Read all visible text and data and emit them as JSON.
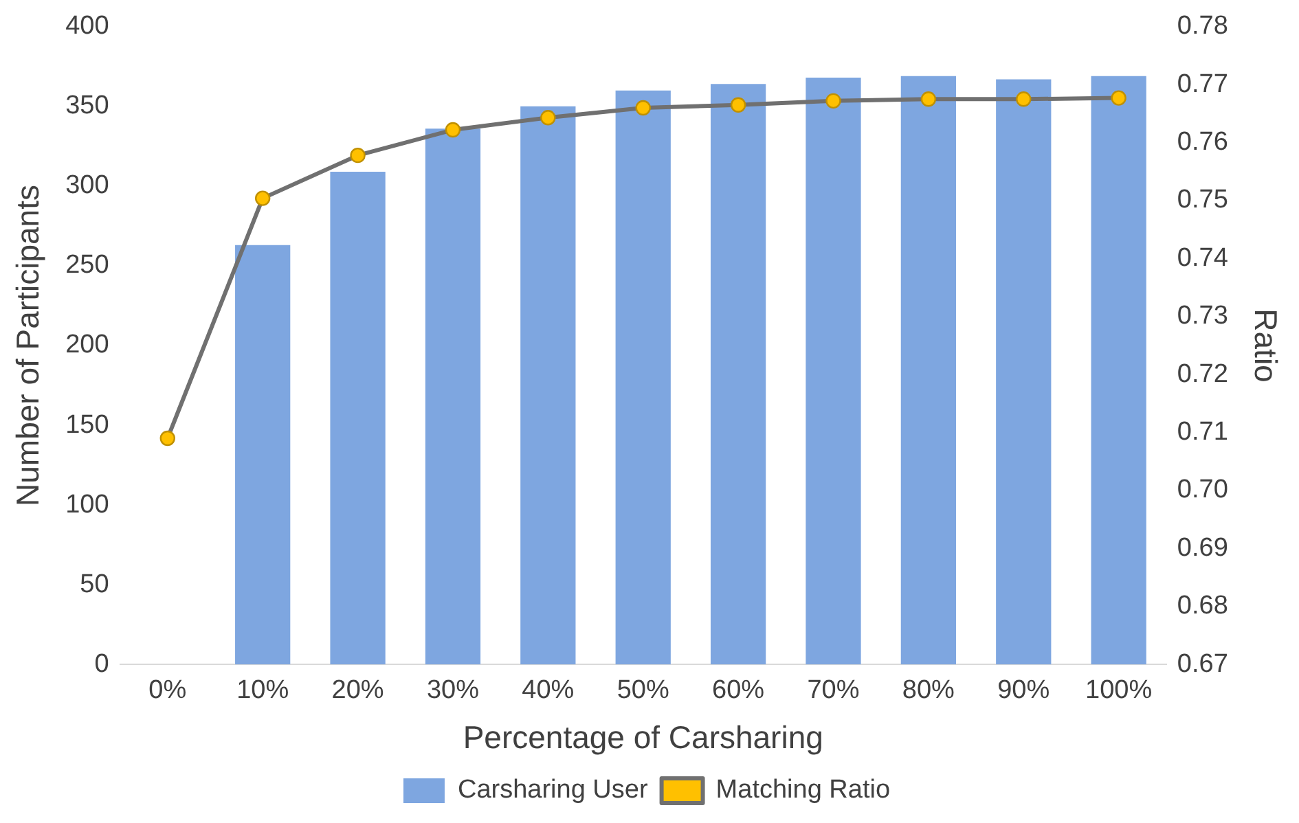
{
  "chart_data": {
    "type": "bar",
    "categories": [
      "0%",
      "10%",
      "20%",
      "30%",
      "40%",
      "50%",
      "60%",
      "70%",
      "80%",
      "90%",
      "100%"
    ],
    "xlabel": "Percentage of Carsharing",
    "ylabel": "Number of Participants",
    "y2label": "Ratio",
    "series": [
      {
        "name": "Carsharing User",
        "color": "#7ea6e0",
        "values": [
          0,
          263,
          309,
          336,
          350,
          360,
          364,
          368,
          369,
          367,
          369
        ]
      },
      {
        "name": "Matching Ratio",
        "type": "line",
        "axis": "y2",
        "color": "#707070",
        "marker": "circle",
        "values": [
          0.709,
          0.7504,
          0.7578,
          0.7622,
          0.7643,
          0.766,
          0.7665,
          0.7672,
          0.7675,
          0.7675,
          0.7677
        ]
      }
    ],
    "ylim": [
      0,
      400
    ],
    "yticks": [
      0,
      50,
      100,
      150,
      200,
      250,
      300,
      350,
      400
    ],
    "y2lim": [
      0.67,
      0.78
    ],
    "y2ticks": [
      {
        "value": 0.67,
        "label": "0.67"
      },
      {
        "value": 0.68,
        "label": "0.68"
      },
      {
        "value": 0.69,
        "label": "0.69"
      },
      {
        "value": 0.7,
        "label": "0.70"
      },
      {
        "value": 0.71,
        "label": "0.71"
      },
      {
        "value": 0.72,
        "label": "0.72"
      },
      {
        "value": 0.73,
        "label": "0.73"
      },
      {
        "value": 0.74,
        "label": "0.74"
      },
      {
        "value": 0.75,
        "label": "0.75"
      },
      {
        "value": 0.76,
        "label": "0.76"
      },
      {
        "value": 0.77,
        "label": "0.77"
      },
      {
        "value": 0.78,
        "label": "0.78"
      }
    ],
    "grid": false,
    "legend": "bottom"
  }
}
